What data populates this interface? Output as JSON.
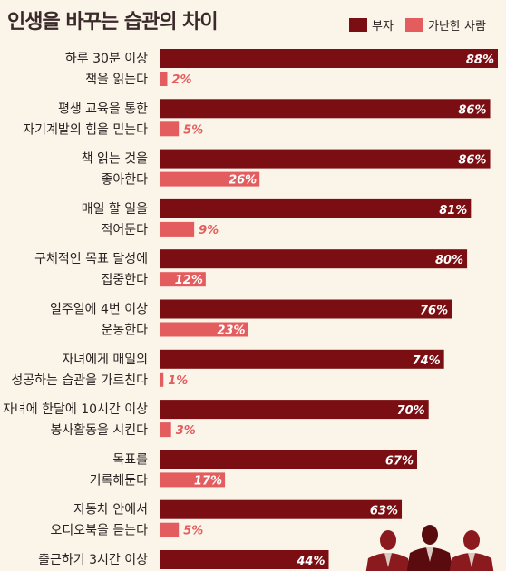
{
  "chart_data": {
    "type": "bar",
    "orientation": "horizontal",
    "title": "인생을 바꾸는 습관의 차이",
    "categories": [
      [
        "하루 30분 이상",
        "책을 읽는다"
      ],
      [
        "평생 교육을 통한",
        "자기계발의 힘을 믿는다"
      ],
      [
        "책 읽는 것을",
        "좋아한다"
      ],
      [
        "매일 할 일을",
        "적어둔다"
      ],
      [
        "구체적인 목표 달성에",
        "집중한다"
      ],
      [
        "일주일에 4번 이상",
        "운동한다"
      ],
      [
        "자녀에게 매일의",
        "성공하는 습관을 가르친다"
      ],
      [
        "자녀에 한달에 10시간 이상",
        "봉사활동을 시킨다"
      ],
      [
        "목표를",
        "기록해둔다"
      ],
      [
        "자동차 안에서",
        "오디오북을 듣는다"
      ],
      [
        "출근하기 3시간 이상",
        ""
      ]
    ],
    "series": [
      {
        "name": "부자",
        "values": [
          88,
          86,
          86,
          81,
          80,
          76,
          74,
          70,
          67,
          63,
          44
        ],
        "color": "#7a0e12"
      },
      {
        "name": "가난한 사람",
        "values": [
          2,
          5,
          26,
          9,
          12,
          23,
          1,
          3,
          17,
          5,
          null
        ],
        "color": "#e35d5f"
      }
    ],
    "value_suffix": "%",
    "xlim": [
      0,
      88
    ],
    "legend": "top-right",
    "grid": false
  }
}
